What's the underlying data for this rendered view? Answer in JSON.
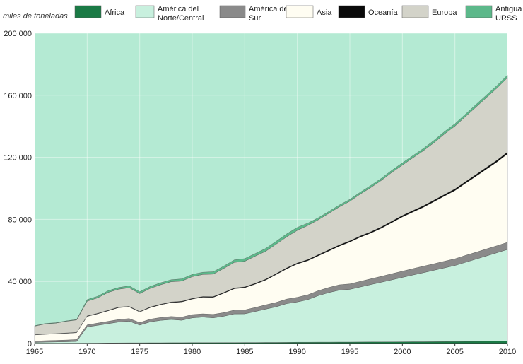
{
  "chart_data": {
    "type": "area",
    "stacked": true,
    "ylabel": "miles de toneladas",
    "xlim": [
      1965,
      2010
    ],
    "ylim": [
      0,
      200000
    ],
    "x_ticks": [
      1965,
      1970,
      1975,
      1980,
      1985,
      1990,
      1995,
      2000,
      2005,
      2010
    ],
    "x_tick_labels": [
      "1965",
      "1970",
      "1975",
      "1980",
      "1985",
      "1990",
      "1995",
      "2000",
      "2005",
      "2010"
    ],
    "y_ticks": [
      0,
      40000,
      80000,
      120000,
      160000,
      200000
    ],
    "y_tick_labels": [
      "0",
      "40 000",
      "80 000",
      "120 000",
      "160 000",
      "200 000"
    ],
    "grid": true,
    "legend_position": "top",
    "x": [
      1965,
      1966,
      1967,
      1968,
      1969,
      1970,
      1971,
      1972,
      1973,
      1974,
      1975,
      1976,
      1977,
      1978,
      1979,
      1980,
      1981,
      1982,
      1983,
      1984,
      1985,
      1986,
      1987,
      1988,
      1989,
      1990,
      1991,
      1992,
      1993,
      1994,
      1995,
      1996,
      1997,
      1998,
      1999,
      2000,
      2001,
      2002,
      2003,
      2004,
      2005,
      2006,
      2007,
      2008,
      2009,
      2010
    ],
    "series": [
      {
        "name": "Africa",
        "color": "#1a7a45",
        "values": [
          100,
          100,
          100,
          150,
          150,
          200,
          250,
          300,
          350,
          400,
          400,
          450,
          450,
          500,
          500,
          550,
          550,
          550,
          600,
          600,
          650,
          650,
          700,
          700,
          750,
          800,
          800,
          850,
          850,
          900,
          900,
          950,
          1000,
          1000,
          1050,
          1100,
          1150,
          1150,
          1200,
          1250,
          1300,
          1350,
          1400,
          1450,
          1500,
          1600
        ]
      },
      {
        "name": "América del Norte/Central",
        "color": "#c8f0de",
        "values": [
          600,
          800,
          900,
          1000,
          1200,
          10500,
          11500,
          12500,
          13500,
          14000,
          11500,
          13500,
          14500,
          15000,
          14500,
          16000,
          16500,
          16000,
          17000,
          18500,
          18500,
          20000,
          21500,
          23000,
          25000,
          26000,
          27500,
          30000,
          32000,
          33500,
          34000,
          35500,
          37000,
          38500,
          40000,
          41500,
          43000,
          44500,
          46000,
          47500,
          49000,
          51000,
          53000,
          55000,
          57000,
          59000
        ]
      },
      {
        "name": "América del Sur",
        "color": "#8a8a8a",
        "values": [
          800,
          900,
          1000,
          1100,
          1200,
          1300,
          1400,
          1500,
          1600,
          1700,
          1600,
          1700,
          1800,
          1900,
          2000,
          2100,
          2100,
          2200,
          2300,
          2400,
          2500,
          2600,
          2700,
          2800,
          2900,
          3000,
          3100,
          3200,
          3300,
          3400,
          3500,
          3600,
          3700,
          3800,
          3900,
          4000,
          4100,
          4200,
          4200,
          4300,
          4300,
          4400,
          4400,
          4500,
          4500,
          4600
        ]
      },
      {
        "name": "Asia",
        "color": "#fffdf2",
        "values": [
          4000,
          4100,
          4200,
          4300,
          4400,
          5500,
          6000,
          6800,
          7700,
          7500,
          6800,
          7500,
          8200,
          9000,
          9800,
          10000,
          10700,
          11000,
          12500,
          13800,
          14300,
          15000,
          16000,
          18000,
          19500,
          21500,
          22000,
          22500,
          23500,
          25000,
          27000,
          28500,
          29500,
          31000,
          33000,
          35000,
          36500,
          38000,
          40000,
          42000,
          44000,
          46500,
          49000,
          51500,
          54000,
          57000
        ]
      },
      {
        "name": "Oceanía",
        "color": "#0a0a0a",
        "values": [
          200,
          200,
          200,
          250,
          250,
          300,
          300,
          350,
          350,
          350,
          350,
          400,
          400,
          400,
          450,
          450,
          450,
          500,
          500,
          500,
          550,
          550,
          600,
          600,
          650,
          650,
          700,
          700,
          750,
          750,
          800,
          800,
          850,
          850,
          900,
          900,
          950,
          950,
          1000,
          1000,
          1050,
          1050,
          1100,
          1100,
          1150,
          1200
        ]
      },
      {
        "name": "Europa",
        "color": "#d3d3c9",
        "values": [
          5500,
          6500,
          6700,
          7500,
          8000,
          9500,
          10000,
          11500,
          11500,
          12000,
          11500,
          12000,
          12500,
          13000,
          13000,
          14000,
          14200,
          14500,
          15500,
          16500,
          16500,
          17500,
          18000,
          19000,
          20000,
          21000,
          22000,
          22500,
          23500,
          24500,
          25500,
          27000,
          28500,
          30000,
          31500,
          32500,
          34000,
          35500,
          37000,
          39000,
          40500,
          42000,
          43500,
          45000,
          46500,
          48000
        ]
      },
      {
        "name": "Antigua URSS",
        "color": "#5cb88a",
        "values": [
          300,
          300,
          300,
          300,
          300,
          1000,
          1000,
          1100,
          1100,
          1200,
          1200,
          1200,
          1300,
          1300,
          1400,
          1400,
          1400,
          1500,
          1500,
          1600,
          1700,
          1700,
          1800,
          1800,
          1900,
          1900,
          1500,
          1300,
          1200,
          1200,
          1200,
          1200,
          1300,
          1300,
          1300,
          1400,
          1400,
          1400,
          1500,
          1500,
          1500,
          1500,
          1600,
          1600,
          1600,
          1600
        ]
      }
    ]
  },
  "colors": {
    "background_area": "#b4ead3"
  }
}
